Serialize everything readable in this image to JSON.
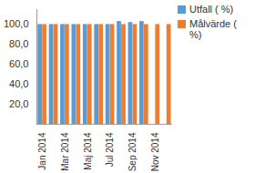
{
  "chart_data": {
    "type": "bar",
    "categories": [
      "Jan 2014",
      null,
      "Mar 2014",
      null,
      "Maj 2014",
      null,
      "Jul 2014",
      null,
      "Sep 2014",
      null,
      "Nov 2014",
      null
    ],
    "series": [
      {
        "name": "Utfall ( %)",
        "color": "#5b9bd5",
        "values": [
          100,
          100,
          100,
          100,
          100,
          100,
          100,
          103,
          102,
          103,
          null,
          null
        ]
      },
      {
        "name": "Målvärde ( %)",
        "color": "#ed7d31",
        "values": [
          100,
          100,
          100,
          100,
          100,
          100,
          100,
          100,
          100,
          100,
          100,
          100
        ]
      }
    ],
    "ylim": [
      0,
      115
    ],
    "yticks": [
      {
        "value": 20,
        "label": "20,0"
      },
      {
        "value": 40,
        "label": "40,0"
      },
      {
        "value": 60,
        "label": "60,0"
      },
      {
        "value": 80,
        "label": "80,0"
      },
      {
        "value": 100,
        "label": "100,0"
      }
    ],
    "legend": "right"
  }
}
